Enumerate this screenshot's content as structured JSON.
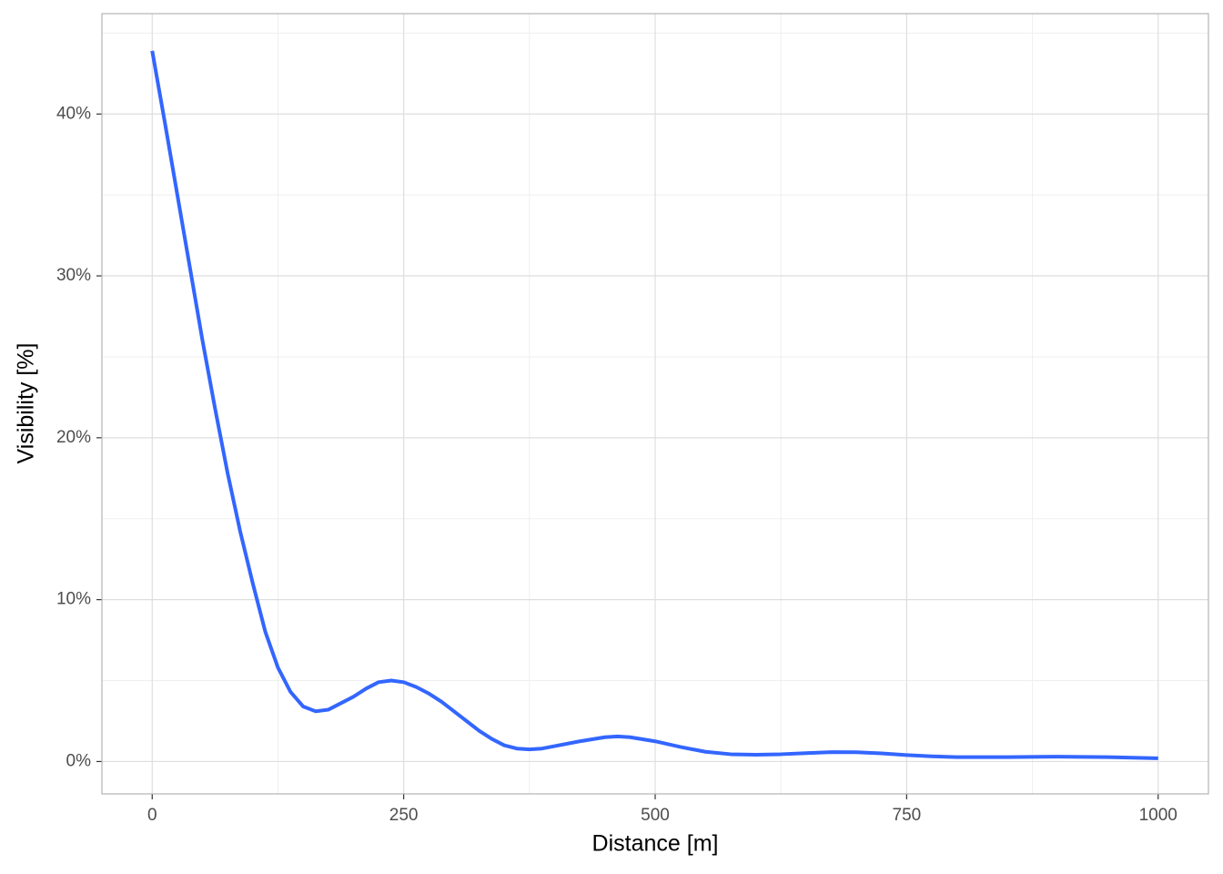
{
  "chart_data": {
    "type": "line",
    "x_label": "Distance [m]",
    "y_label": "Visibility [%]",
    "x": [
      0,
      12.5,
      25,
      37.5,
      50,
      62.5,
      75,
      87.5,
      100,
      112.5,
      125,
      137.5,
      150,
      162.5,
      175,
      187.5,
      200,
      212.5,
      225,
      237.5,
      250,
      262.5,
      275,
      287.5,
      300,
      312.5,
      325,
      337.5,
      350,
      362.5,
      375,
      387.5,
      400,
      425,
      450,
      462.5,
      475,
      500,
      525,
      550,
      575,
      600,
      625,
      650,
      675,
      700,
      725,
      750,
      775,
      800,
      850,
      900,
      950,
      1000
    ],
    "series": [
      {
        "color": "#3366ff",
        "values": [
          43.9,
          39.5,
          35.0,
          30.5,
          26.0,
          21.8,
          17.8,
          14.2,
          11.0,
          8.0,
          5.8,
          4.3,
          3.4,
          3.1,
          3.2,
          3.6,
          4.0,
          4.5,
          4.9,
          5.0,
          4.9,
          4.6,
          4.2,
          3.7,
          3.1,
          2.5,
          1.9,
          1.4,
          1.0,
          0.8,
          0.75,
          0.8,
          0.95,
          1.25,
          1.5,
          1.55,
          1.5,
          1.25,
          0.9,
          0.6,
          0.45,
          0.42,
          0.45,
          0.52,
          0.58,
          0.57,
          0.5,
          0.4,
          0.32,
          0.27,
          0.27,
          0.3,
          0.27,
          0.2
        ]
      }
    ],
    "xlim": [
      -50,
      1050
    ],
    "ylim": [
      -2,
      46.2
    ],
    "xticks": [
      0,
      250,
      500,
      750,
      1000
    ],
    "yticks": [
      {
        "value": 0,
        "label": "0%"
      },
      {
        "value": 10,
        "label": "10%"
      },
      {
        "value": 20,
        "label": "20%"
      },
      {
        "value": 30,
        "label": "30%"
      },
      {
        "value": 40,
        "label": "40%"
      }
    ],
    "xminor": [
      125,
      375,
      625,
      875
    ],
    "yminor": [
      5,
      15,
      25,
      35,
      45
    ],
    "grid": true
  }
}
